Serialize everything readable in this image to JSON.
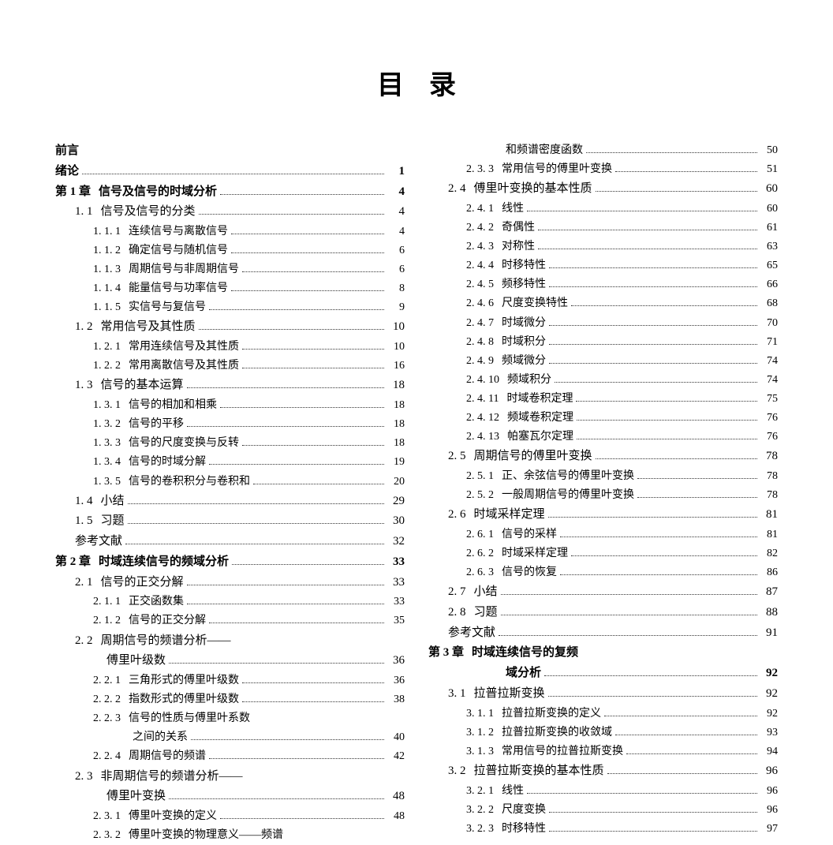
{
  "title": "目录",
  "left": [
    {
      "lvl": 0,
      "num": "",
      "label": "前言",
      "page": "",
      "nopage": true
    },
    {
      "lvl": 0,
      "num": "",
      "label": "绪论",
      "page": "1"
    },
    {
      "lvl": 0,
      "num": "第 1 章",
      "label": "信号及信号的时域分析",
      "page": "4",
      "bold": true
    },
    {
      "lvl": 1,
      "num": "1. 1",
      "label": "信号及信号的分类",
      "page": "4"
    },
    {
      "lvl": 2,
      "num": "1. 1. 1",
      "label": "连续信号与离散信号",
      "page": "4"
    },
    {
      "lvl": 2,
      "num": "1. 1. 2",
      "label": "确定信号与随机信号",
      "page": "6"
    },
    {
      "lvl": 2,
      "num": "1. 1. 3",
      "label": "周期信号与非周期信号",
      "page": "6"
    },
    {
      "lvl": 2,
      "num": "1. 1. 4",
      "label": "能量信号与功率信号",
      "page": "8"
    },
    {
      "lvl": 2,
      "num": "1. 1. 5",
      "label": "实信号与复信号",
      "page": "9"
    },
    {
      "lvl": 1,
      "num": "1. 2",
      "label": "常用信号及其性质",
      "page": "10"
    },
    {
      "lvl": 2,
      "num": "1. 2. 1",
      "label": "常用连续信号及其性质",
      "page": "10"
    },
    {
      "lvl": 2,
      "num": "1. 2. 2",
      "label": "常用离散信号及其性质",
      "page": "16"
    },
    {
      "lvl": 1,
      "num": "1. 3",
      "label": "信号的基本运算",
      "page": "18"
    },
    {
      "lvl": 2,
      "num": "1. 3. 1",
      "label": "信号的相加和相乘",
      "page": "18"
    },
    {
      "lvl": 2,
      "num": "1. 3. 2",
      "label": "信号的平移",
      "page": "18"
    },
    {
      "lvl": 2,
      "num": "1. 3. 3",
      "label": "信号的尺度变换与反转",
      "page": "18"
    },
    {
      "lvl": 2,
      "num": "1. 3. 4",
      "label": "信号的时域分解",
      "page": "19"
    },
    {
      "lvl": 2,
      "num": "1. 3. 5",
      "label": "信号的卷积积分与卷积和",
      "page": "20"
    },
    {
      "lvl": 1,
      "num": "1. 4",
      "label": "小结",
      "page": "29"
    },
    {
      "lvl": 1,
      "num": "1. 5",
      "label": "习题",
      "page": "30"
    },
    {
      "lvl": 1,
      "num": "",
      "label": "参考文献",
      "page": "32"
    },
    {
      "lvl": 0,
      "num": "第 2 章",
      "label": "时域连续信号的频域分析",
      "page": "33",
      "bold": true
    },
    {
      "lvl": 1,
      "num": "2. 1",
      "label": "信号的正交分解",
      "page": "33"
    },
    {
      "lvl": 2,
      "num": "2. 1. 1",
      "label": "正交函数集",
      "page": "33"
    },
    {
      "lvl": 2,
      "num": "2. 1. 2",
      "label": "信号的正交分解",
      "page": "35"
    },
    {
      "lvl": 1,
      "num": "2. 2",
      "label": "周期信号的频谱分析——",
      "page": "",
      "nopage": true
    },
    {
      "lvl": 1,
      "num": "",
      "label": "傅里叶级数",
      "page": "36",
      "cont": true,
      "contClass": "continuation-1"
    },
    {
      "lvl": 2,
      "num": "2. 2. 1",
      "label": "三角形式的傅里叶级数",
      "page": "36"
    },
    {
      "lvl": 2,
      "num": "2. 2. 2",
      "label": "指数形式的傅里叶级数",
      "page": "38"
    },
    {
      "lvl": 2,
      "num": "2. 2. 3",
      "label": "信号的性质与傅里叶系数",
      "page": "",
      "nopage": true
    },
    {
      "lvl": 2,
      "num": "",
      "label": "之间的关系",
      "page": "40",
      "cont": true,
      "contClass": "continuation"
    },
    {
      "lvl": 2,
      "num": "2. 2. 4",
      "label": "周期信号的频谱",
      "page": "42"
    },
    {
      "lvl": 1,
      "num": "2. 3",
      "label": "非周期信号的频谱分析——",
      "page": "",
      "nopage": true
    },
    {
      "lvl": 1,
      "num": "",
      "label": "傅里叶变换",
      "page": "48",
      "cont": true,
      "contClass": "continuation-1"
    },
    {
      "lvl": 2,
      "num": "2. 3. 1",
      "label": "傅里叶变换的定义",
      "page": "48"
    },
    {
      "lvl": 2,
      "num": "2. 3. 2",
      "label": "傅里叶变换的物理意义——频谱",
      "page": "",
      "nopage": true
    }
  ],
  "right": [
    {
      "lvl": 2,
      "num": "",
      "label": "和频谱密度函数",
      "page": "50",
      "cont": true,
      "contClass": "continuation"
    },
    {
      "lvl": 2,
      "num": "2. 3. 3",
      "label": "常用信号的傅里叶变换",
      "page": "51"
    },
    {
      "lvl": 1,
      "num": "2. 4",
      "label": "傅里叶变换的基本性质",
      "page": "60"
    },
    {
      "lvl": 2,
      "num": "2. 4. 1",
      "label": "线性",
      "page": "60"
    },
    {
      "lvl": 2,
      "num": "2. 4. 2",
      "label": "奇偶性",
      "page": "61"
    },
    {
      "lvl": 2,
      "num": "2. 4. 3",
      "label": "对称性",
      "page": "63"
    },
    {
      "lvl": 2,
      "num": "2. 4. 4",
      "label": "时移特性",
      "page": "65"
    },
    {
      "lvl": 2,
      "num": "2. 4. 5",
      "label": "频移特性",
      "page": "66"
    },
    {
      "lvl": 2,
      "num": "2. 4. 6",
      "label": "尺度变换特性",
      "page": "68"
    },
    {
      "lvl": 2,
      "num": "2. 4. 7",
      "label": "时域微分",
      "page": "70"
    },
    {
      "lvl": 2,
      "num": "2. 4. 8",
      "label": "时域积分",
      "page": "71"
    },
    {
      "lvl": 2,
      "num": "2. 4. 9",
      "label": "频域微分",
      "page": "74"
    },
    {
      "lvl": 2,
      "num": "2. 4. 10",
      "label": "频域积分",
      "page": "74"
    },
    {
      "lvl": 2,
      "num": "2. 4. 11",
      "label": "时域卷积定理",
      "page": "75"
    },
    {
      "lvl": 2,
      "num": "2. 4. 12",
      "label": "频域卷积定理",
      "page": "76"
    },
    {
      "lvl": 2,
      "num": "2. 4. 13",
      "label": "帕塞瓦尔定理",
      "page": "76"
    },
    {
      "lvl": 1,
      "num": "2. 5",
      "label": "周期信号的傅里叶变换",
      "page": "78"
    },
    {
      "lvl": 2,
      "num": "2. 5. 1",
      "label": "正、余弦信号的傅里叶变换",
      "page": "78"
    },
    {
      "lvl": 2,
      "num": "2. 5. 2",
      "label": "一般周期信号的傅里叶变换",
      "page": "78"
    },
    {
      "lvl": 1,
      "num": "2. 6",
      "label": "时域采样定理",
      "page": "81"
    },
    {
      "lvl": 2,
      "num": "2. 6. 1",
      "label": "信号的采样",
      "page": "81"
    },
    {
      "lvl": 2,
      "num": "2. 6. 2",
      "label": "时域采样定理",
      "page": "82"
    },
    {
      "lvl": 2,
      "num": "2. 6. 3",
      "label": "信号的恢复",
      "page": "86"
    },
    {
      "lvl": 1,
      "num": "2. 7",
      "label": "小结",
      "page": "87"
    },
    {
      "lvl": 1,
      "num": "2. 8",
      "label": "习题",
      "page": "88"
    },
    {
      "lvl": 1,
      "num": "",
      "label": "参考文献",
      "page": "91"
    },
    {
      "lvl": 0,
      "num": "第 3 章",
      "label": "时域连续信号的复频",
      "page": "",
      "nopage": true,
      "bold": true
    },
    {
      "lvl": 0,
      "num": "",
      "label": "域分析",
      "page": "92",
      "bold": true,
      "cont": true,
      "contClass": "continuation"
    },
    {
      "lvl": 1,
      "num": "3. 1",
      "label": "拉普拉斯变换",
      "page": "92"
    },
    {
      "lvl": 2,
      "num": "3. 1. 1",
      "label": "拉普拉斯变换的定义",
      "page": "92"
    },
    {
      "lvl": 2,
      "num": "3. 1. 2",
      "label": "拉普拉斯变换的收敛域",
      "page": "93"
    },
    {
      "lvl": 2,
      "num": "3. 1. 3",
      "label": "常用信号的拉普拉斯变换",
      "page": "94"
    },
    {
      "lvl": 1,
      "num": "3. 2",
      "label": "拉普拉斯变换的基本性质",
      "page": "96"
    },
    {
      "lvl": 2,
      "num": "3. 2. 1",
      "label": "线性",
      "page": "96"
    },
    {
      "lvl": 2,
      "num": "3. 2. 2",
      "label": "尺度变换",
      "page": "96"
    },
    {
      "lvl": 2,
      "num": "3. 2. 3",
      "label": "时移特性",
      "page": "97"
    }
  ]
}
